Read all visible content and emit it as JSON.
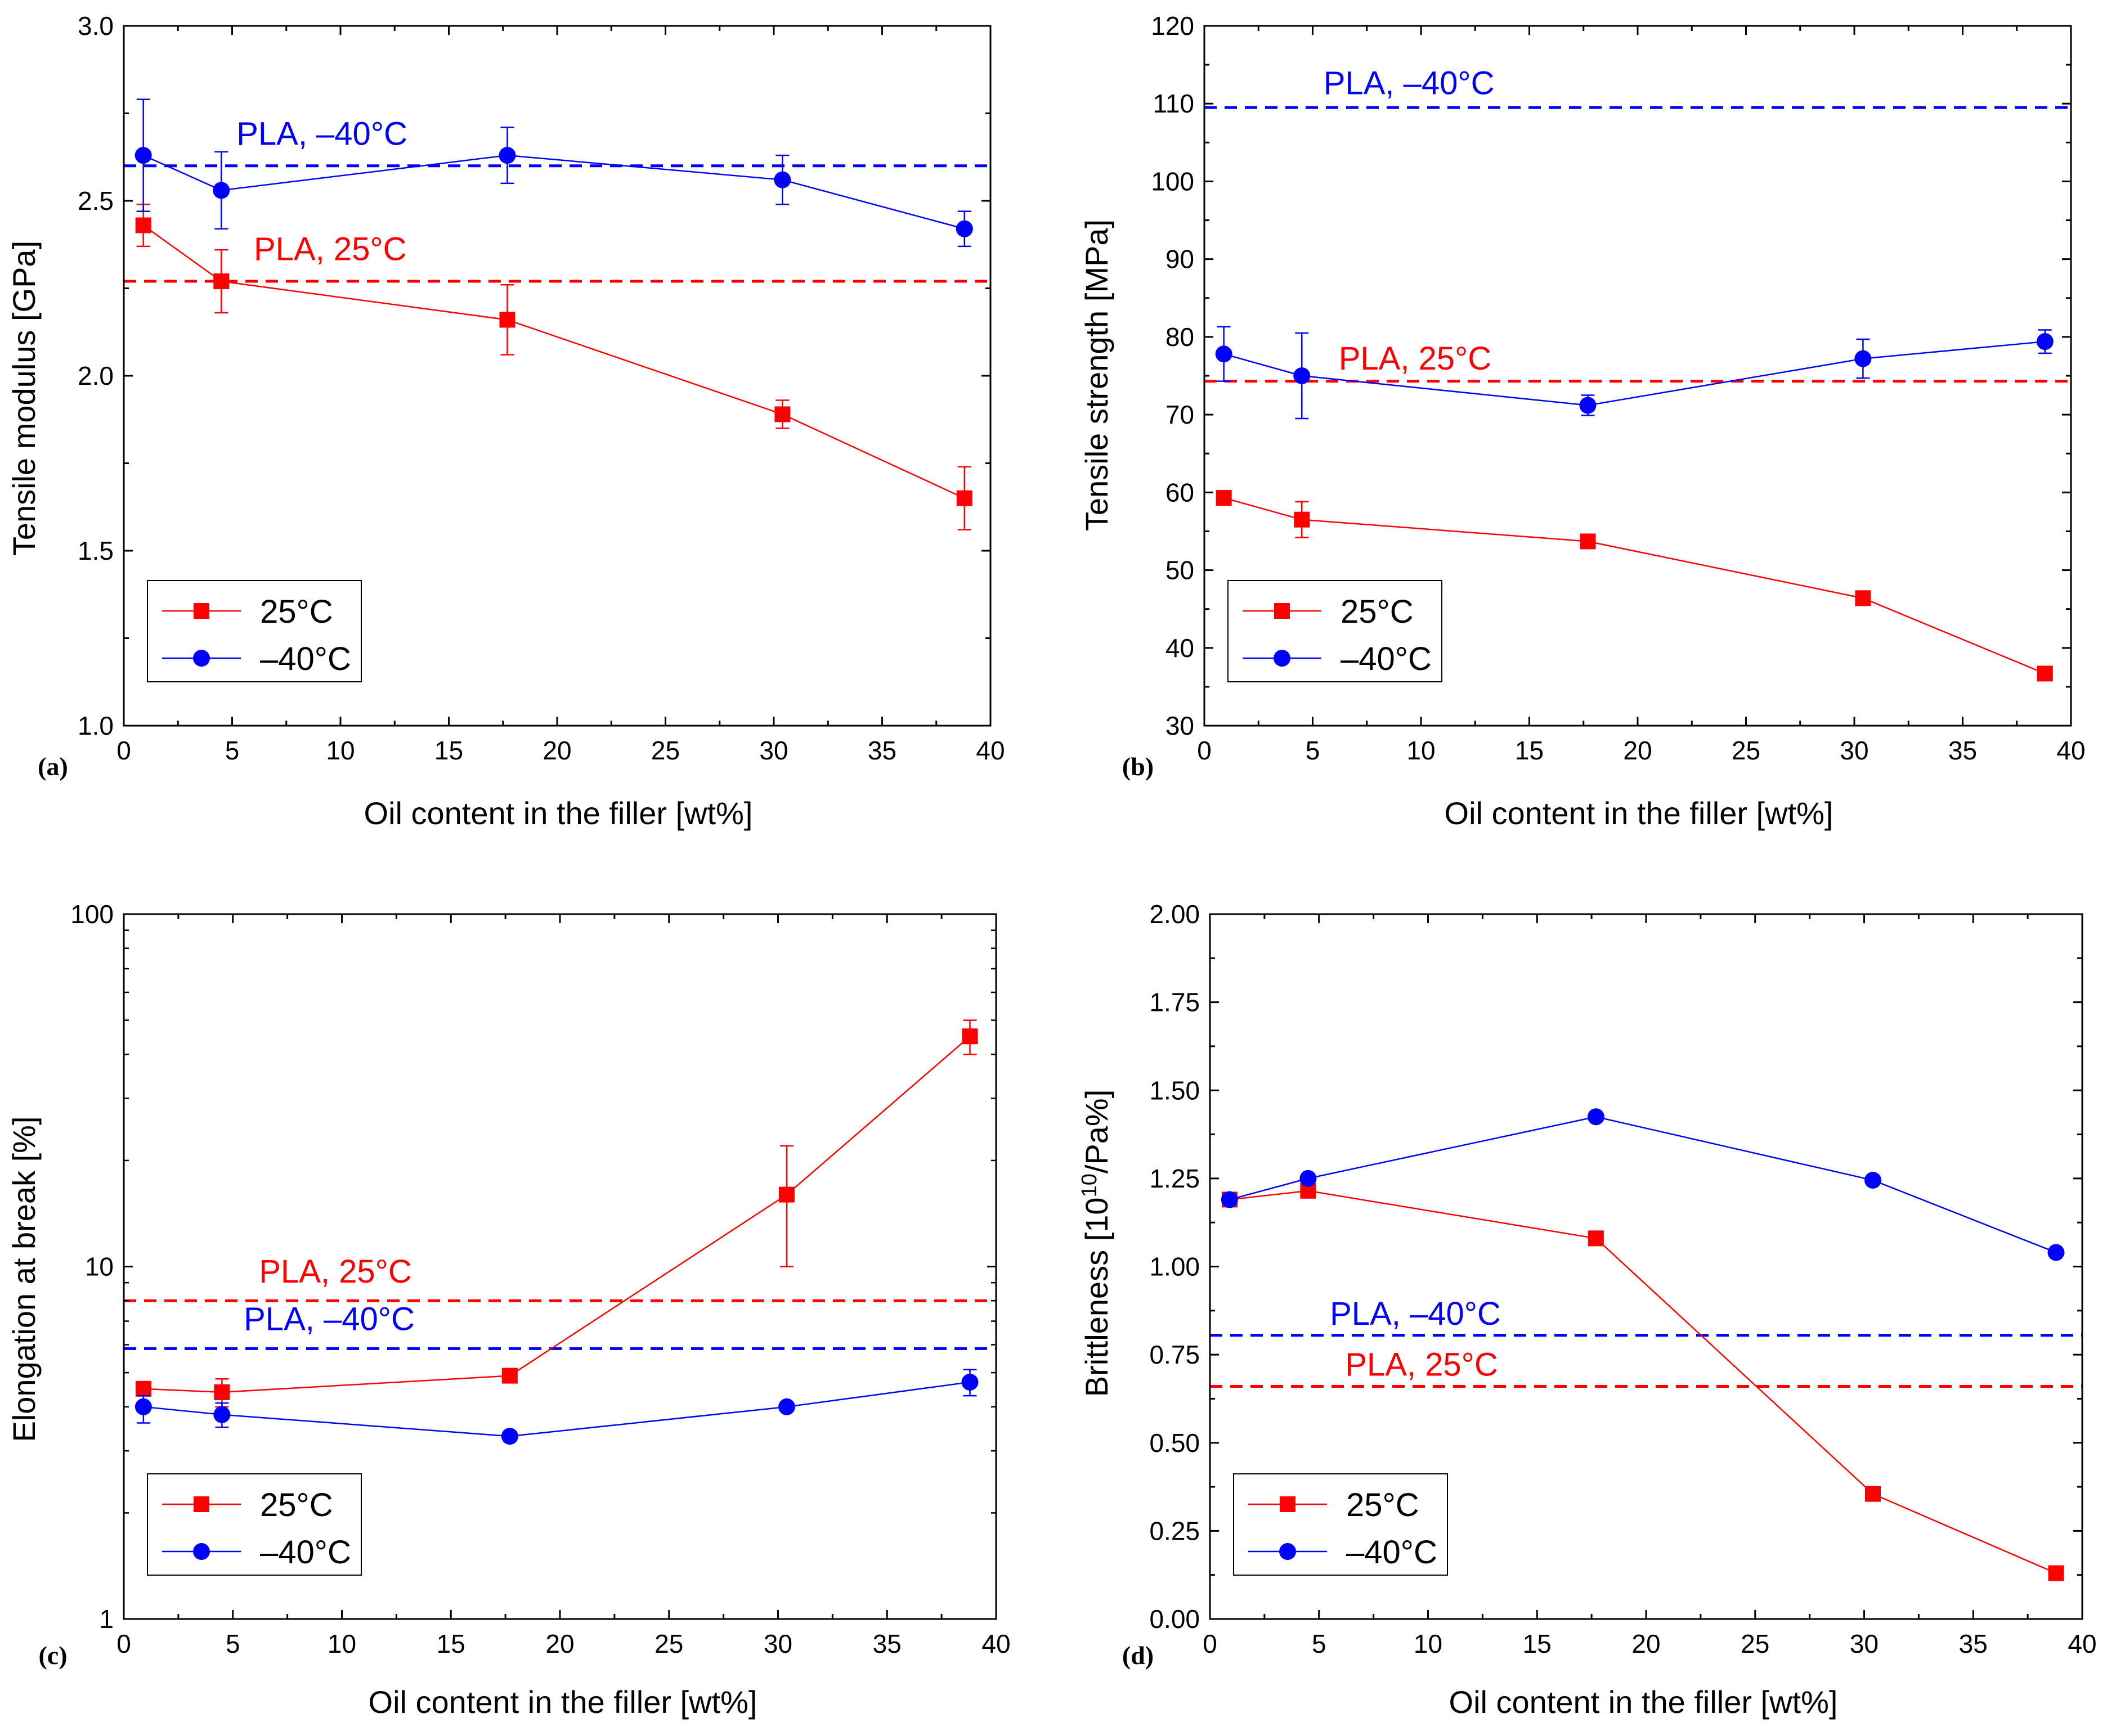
{
  "colors": {
    "c25": "#ff0000",
    "cm40": "#0000ff",
    "axis": "#000000",
    "background": "#ffffff"
  },
  "chart_data": [
    {
      "panel": "(a)",
      "type": "line",
      "scale": "linear",
      "xlabel": "Oil content in the filler [wt%]",
      "ylabel": "Tensile modulus [GPa]",
      "xlim": [
        0,
        40
      ],
      "ylim": [
        1.0,
        3.0
      ],
      "xticks": [
        0,
        5,
        10,
        15,
        20,
        25,
        30,
        35,
        40
      ],
      "yticks": [
        1.0,
        1.5,
        2.0,
        2.5,
        3.0
      ],
      "ytick_labels": [
        "1.0",
        "1.5",
        "2.0",
        "2.5",
        "3.0"
      ],
      "legend_position": "bottom-left",
      "series": [
        {
          "name": "25°C",
          "color": "#ff0000",
          "marker": "square",
          "x": [
            0.9,
            4.5,
            17.7,
            30.4,
            38.8
          ],
          "y": [
            2.43,
            2.27,
            2.16,
            1.89,
            1.65
          ],
          "err": [
            0.06,
            0.09,
            0.1,
            0.04,
            0.09
          ]
        },
        {
          "name": "–40°C",
          "color": "#0000ff",
          "marker": "circle",
          "x": [
            0.9,
            4.5,
            17.7,
            30.4,
            38.8
          ],
          "y": [
            2.63,
            2.53,
            2.63,
            2.56,
            2.42
          ],
          "err": [
            0.16,
            0.11,
            0.08,
            0.07,
            0.05
          ]
        }
      ],
      "reference_lines": [
        {
          "label": "PLA, –40°C",
          "y": 2.6,
          "color": "#0000ff",
          "label_x": 5.2,
          "label_y": 2.66
        },
        {
          "label": "PLA, 25°C",
          "y": 2.27,
          "color": "#ff0000",
          "label_x": 6.0,
          "label_y": 2.33
        }
      ]
    },
    {
      "panel": "(b)",
      "type": "line",
      "scale": "linear",
      "xlabel": "Oil content in the filler [wt%]",
      "ylabel": "Tensile strength [MPa]",
      "xlim": [
        0,
        40
      ],
      "ylim": [
        30,
        120
      ],
      "xticks": [
        0,
        5,
        10,
        15,
        20,
        25,
        30,
        35,
        40
      ],
      "yticks": [
        30,
        40,
        50,
        60,
        70,
        80,
        90,
        100,
        110,
        120
      ],
      "ytick_labels": [
        "30",
        "40",
        "50",
        "60",
        "70",
        "80",
        "90",
        "100",
        "110",
        "120"
      ],
      "legend_position": "bottom-left",
      "series": [
        {
          "name": "25°C",
          "color": "#ff0000",
          "marker": "square",
          "x": [
            0.9,
            4.5,
            17.7,
            30.4,
            38.8
          ],
          "y": [
            59.3,
            56.5,
            53.7,
            46.4,
            36.7
          ],
          "err": [
            0.6,
            2.3,
            0.6,
            0.6,
            0.6
          ]
        },
        {
          "name": "–40°C",
          "color": "#0000ff",
          "marker": "circle",
          "x": [
            0.9,
            4.5,
            17.7,
            30.4,
            38.8
          ],
          "y": [
            77.8,
            75.0,
            71.2,
            77.2,
            79.4
          ],
          "err": [
            3.5,
            5.5,
            1.3,
            2.5,
            1.5
          ]
        }
      ],
      "reference_lines": [
        {
          "label": "PLA, –40°C",
          "y": 109.5,
          "color": "#0000ff",
          "label_x": 5.5,
          "label_y": 111.2
        },
        {
          "label": "PLA, 25°C",
          "y": 74.3,
          "color": "#ff0000",
          "label_x": 6.2,
          "label_y": 75.8
        }
      ]
    },
    {
      "panel": "(c)",
      "type": "line",
      "scale": "log",
      "xlabel": "Oil content in the filler [wt%]",
      "ylabel": "Elongation at break [%]",
      "xlim": [
        0,
        40
      ],
      "ylim": [
        1,
        100
      ],
      "xticks": [
        0,
        5,
        10,
        15,
        20,
        25,
        30,
        35,
        40
      ],
      "yticks": [
        1,
        10,
        100
      ],
      "ytick_labels": [
        "1",
        "10",
        "100"
      ],
      "legend_position": "bottom-left",
      "series": [
        {
          "name": "25°C",
          "color": "#ff0000",
          "marker": "square",
          "x": [
            0.9,
            4.5,
            17.7,
            30.4,
            38.8
          ],
          "y": [
            4.5,
            4.4,
            4.9,
            16.0,
            45.0
          ],
          "err_low": [
            4.3,
            4.0,
            4.7,
            10.0,
            40.0
          ],
          "err_high": [
            4.7,
            4.8,
            5.1,
            22.0,
            50.0
          ]
        },
        {
          "name": "–40°C",
          "color": "#0000ff",
          "marker": "circle",
          "x": [
            0.9,
            4.5,
            17.7,
            30.4,
            38.8
          ],
          "y": [
            4.0,
            3.8,
            3.3,
            4.0,
            4.7
          ],
          "err_low": [
            3.6,
            3.5,
            3.2,
            3.9,
            4.3
          ],
          "err_high": [
            4.3,
            4.1,
            3.4,
            4.1,
            5.1
          ]
        }
      ],
      "reference_lines": [
        {
          "label": "PLA, 25°C",
          "y": 8.0,
          "color": "#ff0000",
          "label_x": 6.2,
          "label_y": 9.0
        },
        {
          "label": "PLA, –40°C",
          "y": 5.85,
          "color": "#0000ff",
          "label_x": 5.5,
          "label_y": 6.6
        }
      ]
    },
    {
      "panel": "(d)",
      "type": "line",
      "scale": "linear",
      "xlabel": "Oil content in the filler [wt%]",
      "ylabel_main": "Brittleness [10",
      "ylabel_sup": "10",
      "ylabel_tail": "/Pa%]",
      "xlim": [
        0,
        40
      ],
      "ylim": [
        0.0,
        2.0
      ],
      "xticks": [
        0,
        5,
        10,
        15,
        20,
        25,
        30,
        35,
        40
      ],
      "yticks": [
        0.0,
        0.25,
        0.5,
        0.75,
        1.0,
        1.25,
        1.5,
        1.75,
        2.0
      ],
      "ytick_labels": [
        "0.00",
        "0.25",
        "0.50",
        "0.75",
        "1.00",
        "1.25",
        "1.50",
        "1.75",
        "2.00"
      ],
      "legend_position": "bottom-left",
      "series": [
        {
          "name": "25°C",
          "color": "#ff0000",
          "marker": "square",
          "x": [
            0.9,
            4.5,
            17.7,
            30.4,
            38.8
          ],
          "y": [
            1.19,
            1.215,
            1.08,
            0.355,
            0.13
          ]
        },
        {
          "name": "–40°C",
          "color": "#0000ff",
          "marker": "circle",
          "x": [
            0.9,
            4.5,
            17.7,
            30.4,
            38.8
          ],
          "y": [
            1.19,
            1.25,
            1.425,
            1.245,
            1.04
          ]
        }
      ],
      "reference_lines": [
        {
          "label": "PLA, –40°C",
          "y": 0.805,
          "color": "#0000ff",
          "label_x": 5.5,
          "label_y": 0.835
        },
        {
          "label": "PLA, 25°C",
          "y": 0.66,
          "color": "#ff0000",
          "label_x": 6.2,
          "label_y": 0.69
        }
      ]
    }
  ]
}
